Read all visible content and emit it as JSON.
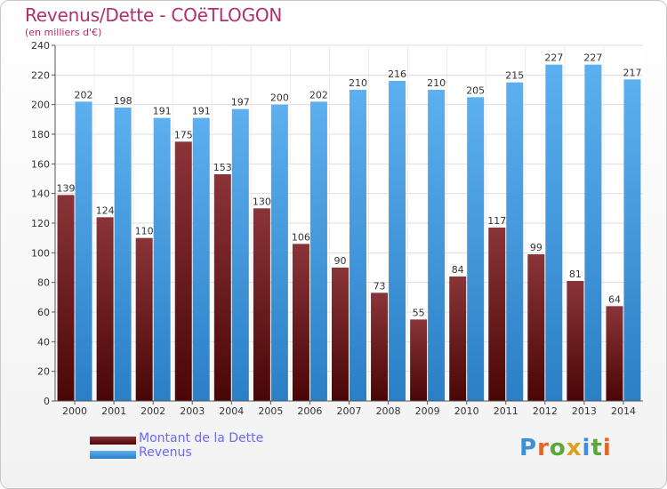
{
  "header": {
    "title": "Revenus/Dette - COëTLOGON",
    "subtitle": "(en milliers d'€)"
  },
  "legend": {
    "dette_label": "Montant de la Dette",
    "revenus_label": "Revenus"
  },
  "logo": {
    "text": "Proxiti"
  },
  "colors": {
    "dette": "#7a2a2e",
    "revenus": "#4aa3e6",
    "title": "#b0306a"
  },
  "chart_data": {
    "type": "bar",
    "title": "Revenus/Dette - COëTLOGON",
    "subtitle": "(en milliers d'€)",
    "xlabel": "",
    "ylabel": "",
    "ylim": [
      0,
      240
    ],
    "yticks": [
      0,
      20,
      40,
      60,
      80,
      100,
      120,
      140,
      160,
      180,
      200,
      220,
      240
    ],
    "grid": true,
    "legend_position": "bottom-left",
    "categories": [
      "2000",
      "2001",
      "2002",
      "2003",
      "2004",
      "2005",
      "2006",
      "2007",
      "2008",
      "2009",
      "2010",
      "2011",
      "2012",
      "2013",
      "2014"
    ],
    "series": [
      {
        "name": "Montant de la Dette",
        "values": [
          139,
          124,
          110,
          175,
          153,
          130,
          106,
          90,
          73,
          55,
          84,
          117,
          99,
          81,
          64
        ]
      },
      {
        "name": "Revenus",
        "values": [
          202,
          198,
          191,
          191,
          197,
          200,
          202,
          210,
          216,
          210,
          205,
          215,
          227,
          227,
          217
        ]
      }
    ]
  }
}
